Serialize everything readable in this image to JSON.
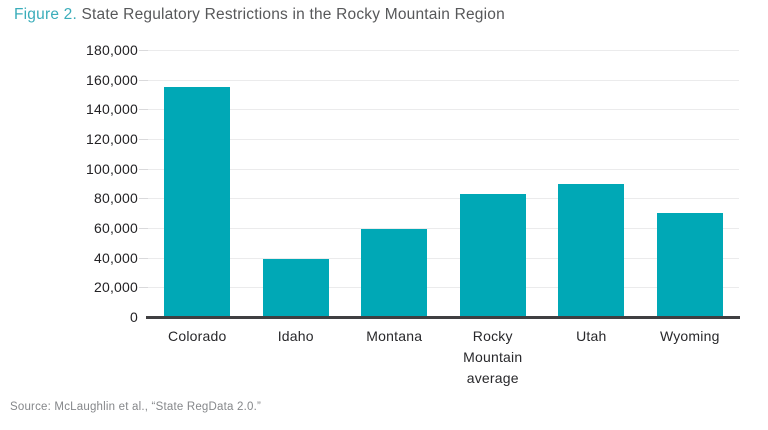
{
  "page": {
    "title_prefix": "Figure 2.",
    "title_rest": " State Regulatory Restrictions in the Rocky Mountain Region",
    "source": "Source: McLaughlin et al., “State RegData 2.0.”"
  },
  "colors": {
    "bar_teal": "#00a8b6",
    "title_accent_teal": "#3aadba",
    "title_gray": "#57585a",
    "axis_text": "#232225",
    "gridline_gray": "#ebebec",
    "baseline_dark": "#3f3f41",
    "source_gray": "#85878a"
  },
  "chart_data": {
    "type": "bar",
    "title": "State Regulatory Restrictions in the Rocky Mountain Region",
    "categories": [
      "Colorado",
      "Idaho",
      "Montana",
      "Rocky Mountain average",
      "Utah",
      "Wyoming"
    ],
    "category_display": [
      "Colorado",
      "Idaho",
      "Montana",
      "Rocky\nMountain\naverage",
      "Utah",
      "Wyoming"
    ],
    "values": [
      155000,
      39000,
      59000,
      83000,
      90000,
      70000
    ],
    "xlabel": "",
    "ylabel": "",
    "ylim": [
      0,
      180000
    ],
    "ytick_step": 20000,
    "ytick_labels": [
      "0",
      "20,000",
      "40,000",
      "60,000",
      "80,000",
      "100,000",
      "120,000",
      "140,000",
      "160,000",
      "180,000"
    ],
    "grid": "horizontal",
    "legend": "none",
    "bar_color": "#00a8b6"
  }
}
